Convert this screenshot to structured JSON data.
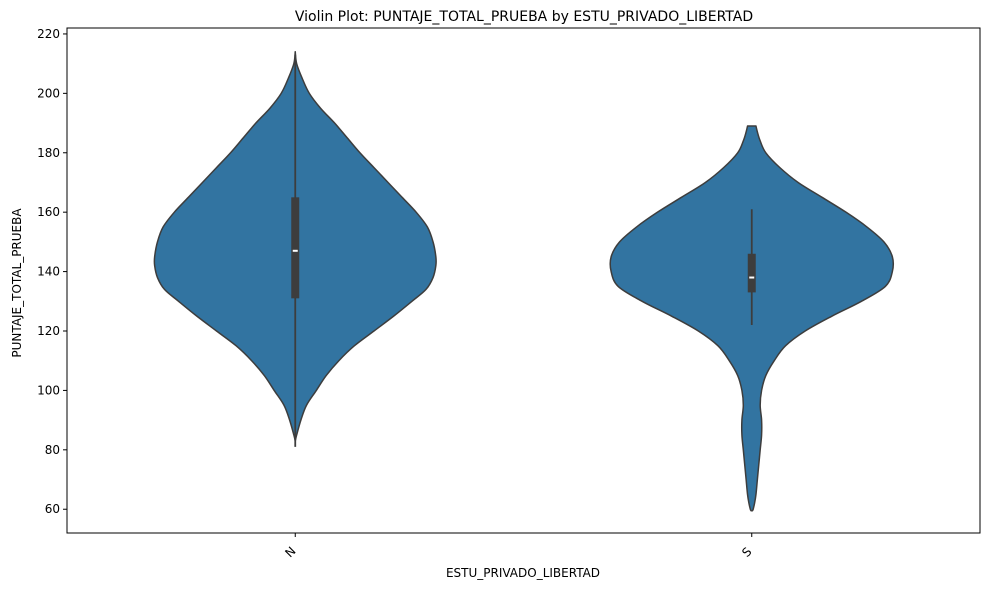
{
  "chart_data": {
    "type": "violin",
    "title": "Violin Plot: PUNTAJE_TOTAL_PRUEBA by ESTU_PRIVADO_LIBERTAD",
    "xlabel": "ESTU_PRIVADO_LIBERTAD",
    "ylabel": "PUNTAJE_TOTAL_PRUEBA",
    "categories": [
      "N",
      "S"
    ],
    "ylim": [
      52,
      222
    ],
    "yticks": [
      60,
      80,
      100,
      120,
      140,
      160,
      180,
      200,
      220
    ],
    "grid": false,
    "colors": {
      "body": "#3274a1",
      "edge": "#3d3d3d",
      "box": "#3d3d3d",
      "median": "#ffffff"
    },
    "violins": [
      {
        "category": "N",
        "min": 81,
        "q1": 131,
        "median": 147,
        "q3": 165,
        "max": 213,
        "density": [
          [
            214,
            0.0
          ],
          [
            210,
            0.01
          ],
          [
            205,
            0.05
          ],
          [
            200,
            0.1
          ],
          [
            195,
            0.18
          ],
          [
            190,
            0.28
          ],
          [
            185,
            0.37
          ],
          [
            180,
            0.46
          ],
          [
            175,
            0.56
          ],
          [
            170,
            0.66
          ],
          [
            165,
            0.76
          ],
          [
            160,
            0.86
          ],
          [
            155,
            0.94
          ],
          [
            150,
            0.98
          ],
          [
            145,
            1.0
          ],
          [
            142,
            1.0
          ],
          [
            138,
            0.98
          ],
          [
            134,
            0.93
          ],
          [
            130,
            0.83
          ],
          [
            125,
            0.7
          ],
          [
            120,
            0.56
          ],
          [
            115,
            0.42
          ],
          [
            110,
            0.31
          ],
          [
            105,
            0.22
          ],
          [
            100,
            0.15
          ],
          [
            95,
            0.08
          ],
          [
            90,
            0.04
          ],
          [
            85,
            0.01
          ],
          [
            83,
            0.0
          ]
        ]
      },
      {
        "category": "S",
        "min": 122,
        "q1": 133,
        "median": 138,
        "q3": 146,
        "max": 161,
        "density": [
          [
            189,
            0.03
          ],
          [
            187,
            0.04
          ],
          [
            184,
            0.06
          ],
          [
            180,
            0.1
          ],
          [
            175,
            0.2
          ],
          [
            170,
            0.33
          ],
          [
            165,
            0.5
          ],
          [
            160,
            0.67
          ],
          [
            155,
            0.82
          ],
          [
            150,
            0.94
          ],
          [
            145,
            1.0
          ],
          [
            140,
            1.0
          ],
          [
            135,
            0.95
          ],
          [
            130,
            0.78
          ],
          [
            125,
            0.57
          ],
          [
            120,
            0.38
          ],
          [
            115,
            0.24
          ],
          [
            110,
            0.16
          ],
          [
            105,
            0.1
          ],
          [
            100,
            0.07
          ],
          [
            95,
            0.06
          ],
          [
            90,
            0.07
          ],
          [
            85,
            0.07
          ],
          [
            80,
            0.06
          ],
          [
            75,
            0.05
          ],
          [
            70,
            0.04
          ],
          [
            65,
            0.03
          ],
          [
            62,
            0.02
          ],
          [
            60,
            0.01
          ],
          [
            59.5,
            0.005
          ]
        ]
      }
    ]
  }
}
